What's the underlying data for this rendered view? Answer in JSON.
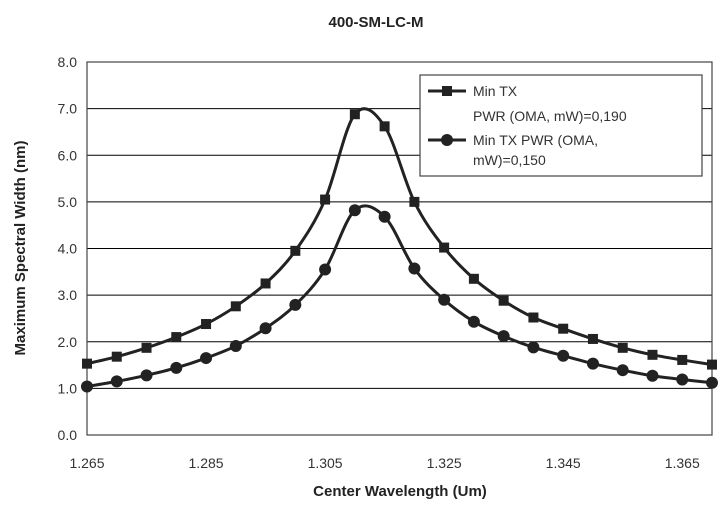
{
  "chart_data": {
    "type": "line",
    "title": "400-SM-LC-M",
    "xlabel": "Center Wavelength (Um)",
    "ylabel": "Maximum Spectral Width (nm)",
    "xlim": [
      1.265,
      1.37
    ],
    "ylim": [
      0.0,
      8.0
    ],
    "xticks": [
      "1.265",
      "1.285",
      "1.305",
      "1.325",
      "1.345",
      "1.365"
    ],
    "yticks": [
      "0.0",
      "1.0",
      "2.0",
      "3.0",
      "4.0",
      "5.0",
      "6.0",
      "7.0",
      "8.0"
    ],
    "grid": "horizontal",
    "legend_position": "top-right",
    "series": [
      {
        "name_lines": [
          "Min TX",
          "PWR (OMA,  mW)=0,190"
        ],
        "marker": "square",
        "x": [
          1.265,
          1.27,
          1.275,
          1.28,
          1.285,
          1.29,
          1.295,
          1.3,
          1.305,
          1.31,
          1.315,
          1.32,
          1.325,
          1.33,
          1.335,
          1.34,
          1.345,
          1.35,
          1.355,
          1.36,
          1.365,
          1.37
        ],
        "values": [
          1.53,
          1.68,
          1.87,
          2.1,
          2.38,
          2.76,
          3.25,
          3.95,
          5.05,
          6.88,
          6.62,
          5.0,
          4.02,
          3.35,
          2.88,
          2.52,
          2.28,
          2.06,
          1.87,
          1.72,
          1.61,
          1.51
        ]
      },
      {
        "name_lines": [
          "Min TX PWR (OMA,",
          "mW)=0,150"
        ],
        "marker": "circle",
        "x": [
          1.265,
          1.27,
          1.275,
          1.28,
          1.285,
          1.29,
          1.295,
          1.3,
          1.305,
          1.31,
          1.315,
          1.32,
          1.325,
          1.33,
          1.335,
          1.34,
          1.345,
          1.35,
          1.355,
          1.36,
          1.365,
          1.37
        ],
        "values": [
          1.04,
          1.15,
          1.28,
          1.44,
          1.65,
          1.91,
          2.29,
          2.79,
          3.55,
          4.82,
          4.68,
          3.57,
          2.9,
          2.43,
          2.12,
          1.88,
          1.7,
          1.53,
          1.39,
          1.27,
          1.19,
          1.12
        ]
      }
    ]
  }
}
